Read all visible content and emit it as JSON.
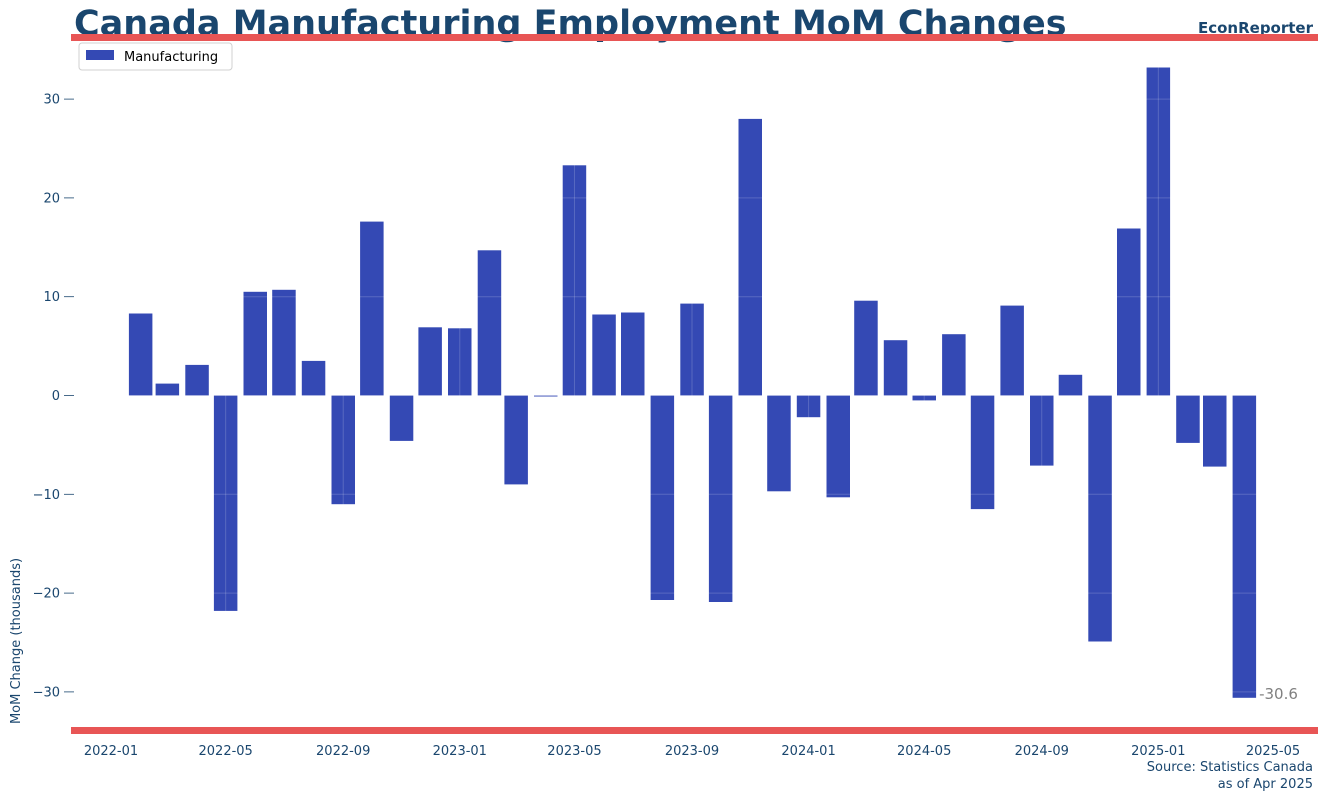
{
  "chart_data": {
    "type": "bar",
    "title": "Canada Manufacturing Employment MoM Changes",
    "brand": "EconReporter",
    "ylabel": "MoM Change (thousands)",
    "xlabel": "",
    "legend": {
      "position": "top-left",
      "label": "Manufacturing"
    },
    "source": "Source: Statistics Canada",
    "as_of": "as of Apr 2025",
    "ylim": [
      -34.3,
      35.5
    ],
    "yticks": [
      -30,
      -20,
      -10,
      0,
      10,
      20,
      30
    ],
    "ytick_labels": [
      "−30",
      "−20",
      "−10",
      "0",
      "10",
      "20",
      "30"
    ],
    "xtick_labels": [
      "2022-01",
      "2022-05",
      "2022-09",
      "2023-01",
      "2023-05",
      "2023-09",
      "2024-01",
      "2024-05",
      "2024-09",
      "2025-01",
      "2025-05"
    ],
    "last_label": "-30.6",
    "grid": true,
    "colors": {
      "bar": "#3449b4",
      "accent": "#e85555",
      "text": "#1a466e",
      "annotation": "#808080"
    },
    "series": [
      {
        "name": "Manufacturing",
        "x": [
          "2022-02",
          "2022-03",
          "2022-04",
          "2022-05",
          "2022-06",
          "2022-07",
          "2022-08",
          "2022-09",
          "2022-10",
          "2022-11",
          "2022-12",
          "2023-01",
          "2023-02",
          "2023-03",
          "2023-04",
          "2023-05",
          "2023-06",
          "2023-07",
          "2023-08",
          "2023-09",
          "2023-10",
          "2023-11",
          "2023-12",
          "2024-01",
          "2024-02",
          "2024-03",
          "2024-04",
          "2024-05",
          "2024-06",
          "2024-07",
          "2024-08",
          "2024-09",
          "2024-10",
          "2024-11",
          "2024-12",
          "2025-01",
          "2025-02",
          "2025-03",
          "2025-04"
        ],
        "values": [
          8.3,
          1.2,
          3.1,
          -21.8,
          10.5,
          10.7,
          3.5,
          -11.0,
          17.6,
          -4.6,
          6.9,
          6.8,
          14.7,
          -9.0,
          -0.1,
          23.3,
          8.2,
          8.4,
          -20.7,
          9.3,
          -20.9,
          28.0,
          -9.7,
          -2.2,
          -10.3,
          9.6,
          5.6,
          -0.5,
          6.2,
          -11.5,
          9.1,
          -7.1,
          2.1,
          -24.9,
          16.9,
          33.2,
          -4.8,
          -7.2,
          -30.6
        ]
      }
    ]
  }
}
